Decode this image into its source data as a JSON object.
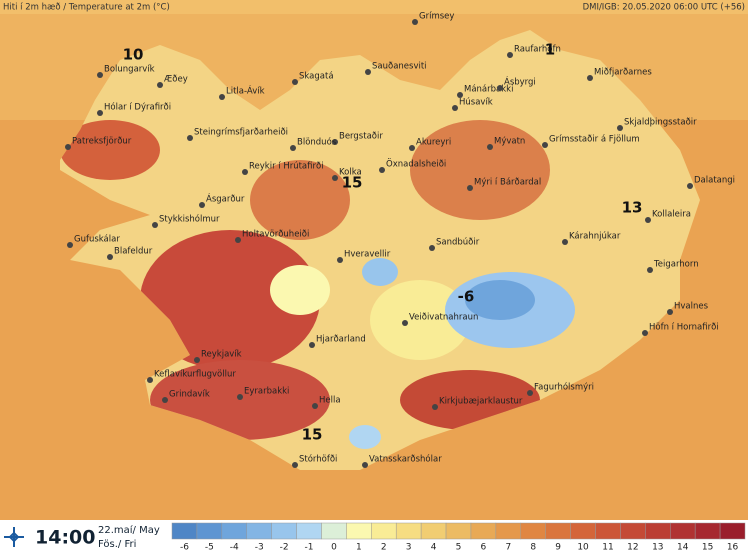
{
  "header": {
    "title": "Hiti í 2m hæð / Temperature at 2m (°C)",
    "source": "DMI/IGB: 20.05.2020 06:00 UTC (+56)"
  },
  "map": {
    "stations": [
      "Grímsey",
      "Raufarhöfn",
      "Bolungarvík",
      "Æðey",
      "Mánárbakki",
      "Skagatá",
      "Sauðanesviti",
      "Miðfjarðarnes",
      "Litla-Ávík",
      "Ásbyrgi",
      "Hólar í Dýrafirði",
      "Húsavík",
      "Steingrímsfjarðarheiði",
      "Bergstaðir",
      "Akureyri",
      "Skjaldþingsstaðir",
      "Patreksfjörður",
      "Blönduós",
      "Mývatn",
      "Grímsstaðir á Fjöllum",
      "Öxnadalsheiði",
      "Mýri í Bárðardal",
      "Dalatangi",
      "Reykir í Hrútafirði",
      "Kolka",
      "Ásgarður",
      "Kollaleira",
      "Stykkishólmur",
      "Gufuskálar",
      "Holtavörðuheiði",
      "Sandbúðir",
      "Kárahnjúkar",
      "Blafeldur",
      "Hveravellir",
      "Teigarhorn",
      "Hvalnes",
      "Veiðivatnahraun",
      "Höfn í Hornafirði",
      "Hjarðarland",
      "Reykjavík",
      "Keflavíkurflugvöllur",
      "Fagurhólsmýri",
      "Grindavík",
      "Eyrarbakki",
      "Hella",
      "Kirkjubæjarklaustur",
      "Stórhöfði",
      "Vatnsskarðshólar"
    ],
    "temperature_labels": [
      10,
      1,
      15,
      13,
      -6,
      15
    ]
  },
  "footer": {
    "time": "14:00",
    "date": "22.maí/ May",
    "day": "Fös./ Fri"
  },
  "legend": {
    "values": [
      -6,
      -5,
      -4,
      -3,
      -2,
      -1,
      0,
      1,
      2,
      3,
      4,
      5,
      6,
      7,
      8,
      9,
      10,
      11,
      12,
      13,
      14,
      15,
      16
    ],
    "colors": [
      "#4f86c6",
      "#5e95d2",
      "#6fa5dc",
      "#83b5e4",
      "#98c5ec",
      "#b0d6f2",
      "#dcefd8",
      "#fbf8b0",
      "#f9ec96",
      "#f6dd82",
      "#f1cd72",
      "#ecbb63",
      "#e8a956",
      "#e5984b",
      "#e08642",
      "#da753d",
      "#d4653a",
      "#cc5638",
      "#c44a36",
      "#bb3e34",
      "#b03232",
      "#a62830",
      "#9a1e2c"
    ]
  }
}
